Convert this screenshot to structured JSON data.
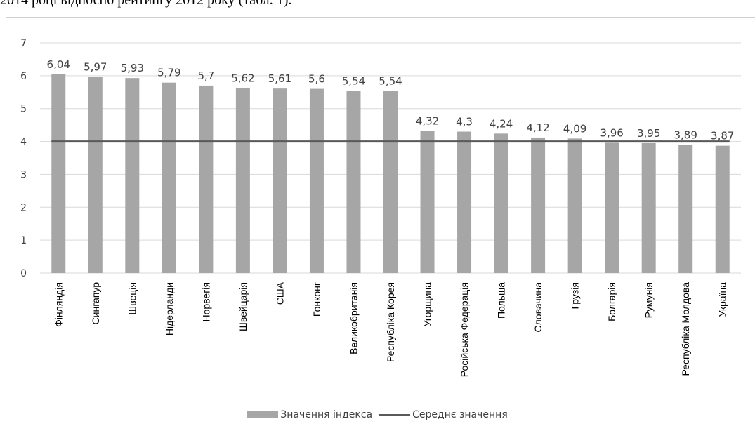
{
  "header_text": "2014 році відносно рейтингу 2012 року (табл. 1).",
  "chart_data": {
    "type": "bar",
    "categories": [
      "Фінляндія",
      "Сингапур",
      "Швеція",
      "Нідерланди",
      "Норвегія",
      "Швейцарія",
      "США",
      "Гонконг",
      "Великобританія",
      "Республіка Корея",
      "Угорщина",
      "Російська Федерація",
      "Польша",
      "Словачина",
      "Грузія",
      "Болгарія",
      "Румунія",
      "Республіка Молдова",
      "Україна"
    ],
    "series": [
      {
        "name": "Значення індекса",
        "type": "bar",
        "color": "#a6a6a6",
        "values": [
          6.04,
          5.97,
          5.93,
          5.79,
          5.7,
          5.62,
          5.61,
          5.6,
          5.54,
          5.54,
          4.32,
          4.3,
          4.24,
          4.12,
          4.09,
          3.96,
          3.95,
          3.89,
          3.87
        ],
        "labels": [
          "6,04",
          "5,97",
          "5,93",
          "5,79",
          "5,7",
          "5,62",
          "5,61",
          "5,6",
          "5,54",
          "5,54",
          "4,32",
          "4,3",
          "4,24",
          "4,12",
          "4,09",
          "3,96",
          "3,95",
          "3,89",
          "3,87"
        ]
      },
      {
        "name": "Середнє значення",
        "type": "line",
        "color": "#595959",
        "value": 4
      }
    ],
    "yticks": [
      "0",
      "1",
      "2",
      "3",
      "4",
      "5",
      "6",
      "7"
    ],
    "ylim": [
      0,
      7
    ],
    "grid": true,
    "legend": "bottom"
  }
}
